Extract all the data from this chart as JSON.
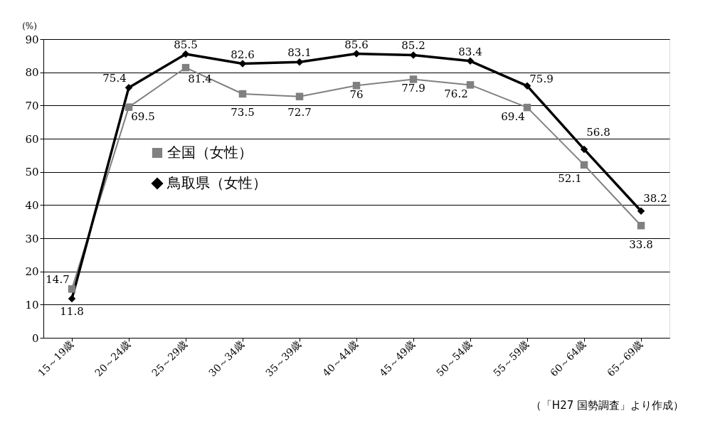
{
  "chart_data": {
    "type": "line",
    "ylabel": "(%)",
    "categories": [
      "15～19歳",
      "20～24歳",
      "25～29歳",
      "30～34歳",
      "35～39歳",
      "40～44歳",
      "45～49歳",
      "50～54歳",
      "55～59歳",
      "60～64歳",
      "65～69歳"
    ],
    "series": [
      {
        "name": "全国（女性）",
        "color": "#808080",
        "marker": "square",
        "values": [
          14.7,
          69.5,
          81.4,
          73.5,
          72.7,
          76,
          77.9,
          76.2,
          69.4,
          52.1,
          33.8
        ]
      },
      {
        "name": "鳥取県（女性）",
        "color": "#000000",
        "marker": "diamond",
        "values": [
          11.8,
          75.4,
          85.5,
          82.6,
          83.1,
          85.6,
          85.2,
          83.4,
          75.9,
          56.8,
          38.2
        ]
      }
    ],
    "ylim": [
      0,
      90
    ],
    "yticks": [
      0,
      10,
      20,
      30,
      40,
      50,
      60,
      70,
      80,
      90
    ],
    "grid": "y",
    "legend": "left",
    "data_labels": true,
    "line_style": "solid",
    "annotations": [
      "（「H27 国勢調査」より作成）"
    ]
  }
}
